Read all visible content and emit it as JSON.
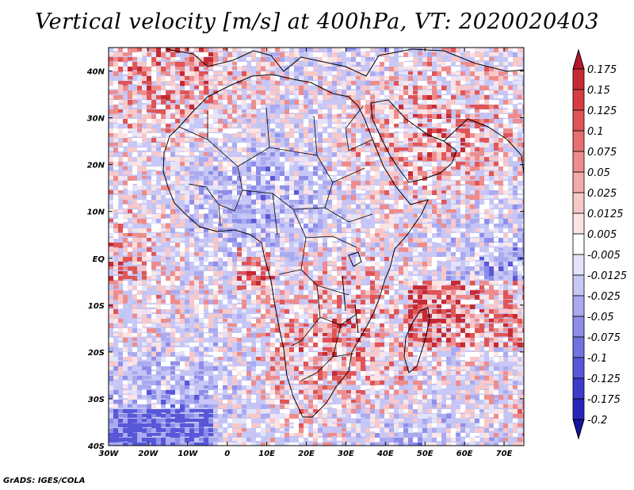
{
  "title": "Vertical velocity [m/s] at 400hPa, VT: 2020020403",
  "footer": "GrADS: IGES/COLA",
  "map": {
    "lat_labels": [
      "40N",
      "30N",
      "20N",
      "10N",
      "EQ",
      "10S",
      "20S",
      "30S",
      "40S"
    ],
    "lon_labels": [
      "30W",
      "20W",
      "10W",
      "0",
      "10E",
      "20E",
      "30E",
      "40E",
      "50E",
      "60E",
      "70E"
    ],
    "lat_range": [
      -40,
      45
    ],
    "lon_range": [
      -30,
      75
    ]
  },
  "colorbar": {
    "levels": [
      "0.175",
      "0.15",
      "0.125",
      "0.1",
      "0.075",
      "0.05",
      "0.025",
      "0.0125",
      "0.005",
      "-0.005",
      "-0.0125",
      "-0.025",
      "-0.05",
      "-0.075",
      "-0.1",
      "-0.125",
      "-0.175",
      "-0.2"
    ],
    "colors": [
      "#b2182b",
      "#c62a33",
      "#d63c40",
      "#e05555",
      "#e76f6f",
      "#ee8c8c",
      "#f4aaaa",
      "#f8c8c8",
      "#fce4e4",
      "#ffffff",
      "#e3e3fb",
      "#c8c8f6",
      "#aaaaf0",
      "#8e8eea",
      "#7272e2",
      "#5757d8",
      "#3b3bcc",
      "#2626b8",
      "#1414a0"
    ]
  },
  "chart_data": {
    "type": "heatmap",
    "title": "Vertical velocity [m/s] at 400hPa, VT: 2020020403",
    "variable": "Vertical velocity",
    "units": "m/s",
    "pressure_level": "400hPa",
    "valid_time": "2020020403",
    "x_ticks": [
      "30W",
      "20W",
      "10W",
      "0",
      "10E",
      "20E",
      "30E",
      "40E",
      "50E",
      "60E",
      "70E"
    ],
    "y_ticks": [
      "40N",
      "30N",
      "20N",
      "10N",
      "EQ",
      "10S",
      "20S",
      "30S",
      "40S"
    ],
    "color_levels": [
      0.175,
      0.15,
      0.125,
      0.1,
      0.075,
      0.05,
      0.025,
      0.0125,
      0.005,
      -0.005,
      -0.0125,
      -0.025,
      -0.05,
      -0.075,
      -0.1,
      -0.125,
      -0.175,
      -0.2
    ]
  }
}
